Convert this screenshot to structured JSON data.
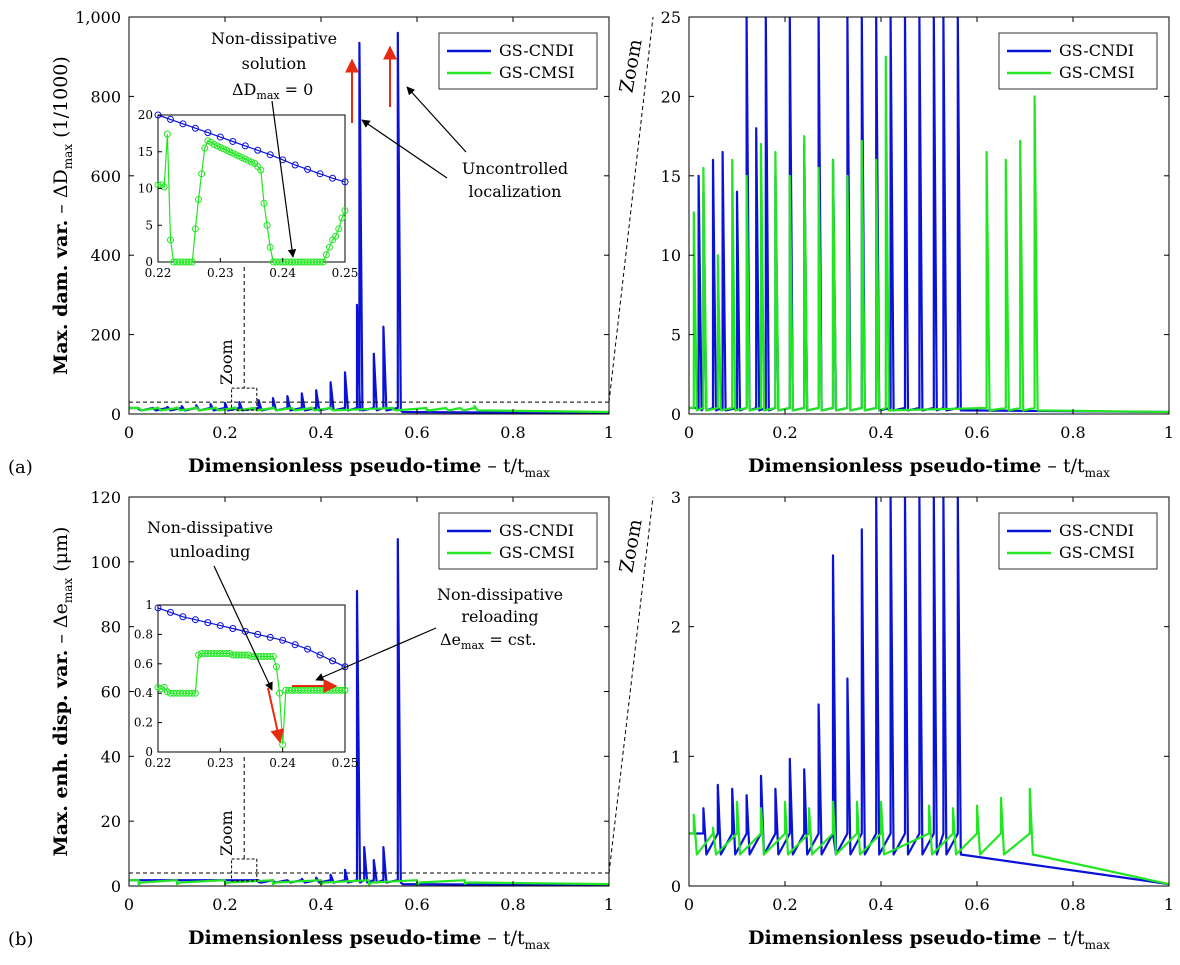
{
  "colors": {
    "cndi": "#0a12d6",
    "cmsi": "#22e622",
    "arrow": "#e52b10",
    "axis": "#000000"
  },
  "chart_data": [
    {
      "id": "a_main",
      "type": "line",
      "panel_label": "(a)",
      "xlabel_bold": "Dimensionless pseudo-time",
      "xlabel_rest": " – t/t",
      "xlabel_sub": "max",
      "ylabel_bold": "Max. dam. var.",
      "ylabel_rest": " – ΔD",
      "ylabel_sub": "max",
      "ylabel_tail": " (1/1000)",
      "xlim": [
        0,
        1
      ],
      "ylim": [
        0,
        1000
      ],
      "xticks": [
        "0",
        "0.2",
        "0.4",
        "0.6",
        "0.8",
        "1"
      ],
      "yticks": [
        "0",
        "200",
        "400",
        "600",
        "800",
        "1,000"
      ],
      "legend": [
        "GS-CNDI",
        "GS-CMSI"
      ],
      "legend_position": "top-right",
      "zoom_label": "Zoom",
      "annotations": [
        "Non-dissipative",
        "solution",
        "ΔD",
        "max",
        " = 0",
        "Uncontrolled",
        "localization"
      ],
      "series": [
        {
          "name": "GS-CNDI",
          "peaks": [
            [
              0.02,
              12
            ],
            [
              0.05,
              14
            ],
            [
              0.08,
              18
            ],
            [
              0.11,
              20
            ],
            [
              0.14,
              22
            ],
            [
              0.17,
              25
            ],
            [
              0.2,
              28
            ],
            [
              0.23,
              30
            ],
            [
              0.27,
              35
            ],
            [
              0.3,
              40
            ],
            [
              0.33,
              45
            ],
            [
              0.36,
              52
            ],
            [
              0.39,
              60
            ],
            [
              0.42,
              80
            ],
            [
              0.45,
              105
            ],
            [
              0.475,
              275
            ],
            [
              0.48,
              935
            ],
            [
              0.51,
              152
            ],
            [
              0.53,
              220
            ],
            [
              0.56,
              960
            ]
          ],
          "end_x": 0.57
        },
        {
          "name": "GS-CMSI",
          "peaks": [
            [
              0.02,
              15
            ],
            [
              0.06,
              16
            ],
            [
              0.1,
              17
            ],
            [
              0.14,
              17
            ],
            [
              0.18,
              16
            ],
            [
              0.22,
              17
            ],
            [
              0.26,
              15
            ],
            [
              0.3,
              17
            ],
            [
              0.34,
              14
            ],
            [
              0.38,
              16
            ],
            [
              0.42,
              13
            ],
            [
              0.55,
              12
            ],
            [
              0.62,
              10
            ],
            [
              0.66,
              14
            ],
            [
              0.69,
              15
            ],
            [
              0.72,
              20
            ]
          ],
          "end_x": 1
        }
      ]
    },
    {
      "id": "a_zoom",
      "type": "line",
      "xlabel_bold": "Dimensionless pseudo-time",
      "xlabel_rest": " – t/t",
      "xlabel_sub": "max",
      "ylabel": "Zoom",
      "xlim": [
        0,
        1
      ],
      "ylim": [
        0,
        25
      ],
      "xticks": [
        "0",
        "0.2",
        "0.4",
        "0.6",
        "0.8",
        "1"
      ],
      "yticks": [
        "0",
        "5",
        "10",
        "15",
        "20",
        "25"
      ],
      "legend": [
        "GS-CNDI",
        "GS-CMSI"
      ],
      "legend_position": "top-right",
      "series": [
        {
          "name": "GS-CNDI",
          "peaks": [
            [
              0.02,
              15
            ],
            [
              0.03,
              14
            ],
            [
              0.05,
              16
            ],
            [
              0.07,
              16.5
            ],
            [
              0.1,
              14
            ],
            [
              0.12,
              25
            ],
            [
              0.14,
              18
            ],
            [
              0.16,
              25
            ],
            [
              0.18,
              15
            ],
            [
              0.21,
              25
            ],
            [
              0.24,
              17
            ],
            [
              0.27,
              25
            ],
            [
              0.3,
              16
            ],
            [
              0.33,
              25
            ],
            [
              0.36,
              25
            ],
            [
              0.39,
              25
            ],
            [
              0.42,
              25
            ],
            [
              0.45,
              25
            ],
            [
              0.48,
              25
            ],
            [
              0.51,
              25
            ],
            [
              0.53,
              25
            ],
            [
              0.56,
              25
            ]
          ],
          "end_x": 1
        },
        {
          "name": "GS-CMSI",
          "peaks": [
            [
              0.01,
              12.7
            ],
            [
              0.03,
              15.5
            ],
            [
              0.06,
              10
            ],
            [
              0.09,
              16
            ],
            [
              0.12,
              15
            ],
            [
              0.15,
              17
            ],
            [
              0.18,
              16.5
            ],
            [
              0.21,
              15
            ],
            [
              0.24,
              17.5
            ],
            [
              0.27,
              15.5
            ],
            [
              0.3,
              16
            ],
            [
              0.33,
              15
            ],
            [
              0.36,
              17.2
            ],
            [
              0.39,
              16
            ],
            [
              0.41,
              22.5
            ],
            [
              0.62,
              16.5
            ],
            [
              0.66,
              16
            ],
            [
              0.69,
              17.2
            ],
            [
              0.72,
              20
            ]
          ],
          "end_x": 1
        }
      ]
    },
    {
      "id": "b_main",
      "type": "line",
      "panel_label": "(b)",
      "xlabel_bold": "Dimensionless pseudo-time",
      "xlabel_rest": " – t/t",
      "xlabel_sub": "max",
      "ylabel_bold": "Max. enh. disp. var.",
      "ylabel_rest": " – Δe",
      "ylabel_sub": "max",
      "ylabel_tail": " (μm)",
      "xlim": [
        0,
        1
      ],
      "ylim": [
        0,
        120
      ],
      "xticks": [
        "0",
        "0.2",
        "0.4",
        "0.6",
        "0.8",
        "1"
      ],
      "yticks": [
        "0",
        "20",
        "40",
        "60",
        "80",
        "100",
        "120"
      ],
      "legend": [
        "GS-CNDI",
        "GS-CMSI"
      ],
      "legend_position": "top-right",
      "zoom_label": "Zoom",
      "annotations": [
        "Non-dissipative",
        "unloading",
        "Non-dissipative",
        "reloading",
        "Δe",
        "max",
        " = cst."
      ],
      "series": [
        {
          "name": "GS-CNDI",
          "peaks": [
            [
              0.27,
              1.2
            ],
            [
              0.3,
              1.5
            ],
            [
              0.33,
              1.8
            ],
            [
              0.36,
              2.2
            ],
            [
              0.39,
              2.6
            ],
            [
              0.42,
              3.5
            ],
            [
              0.45,
              5
            ],
            [
              0.475,
              91
            ],
            [
              0.49,
              12
            ],
            [
              0.51,
              8
            ],
            [
              0.53,
              12
            ],
            [
              0.56,
              107
            ]
          ],
          "end_x": 0.57
        },
        {
          "name": "GS-CMSI",
          "peaks": [
            [
              0.02,
              0.6
            ],
            [
              0.1,
              0.6
            ],
            [
              0.2,
              0.6
            ],
            [
              0.3,
              0.6
            ],
            [
              0.4,
              0.6
            ],
            [
              0.5,
              0.5
            ],
            [
              0.6,
              0.5
            ],
            [
              0.7,
              0.7
            ]
          ],
          "end_x": 1
        }
      ]
    },
    {
      "id": "b_zoom",
      "type": "line",
      "xlabel_bold": "Dimensionless pseudo-time",
      "xlabel_rest": " – t/t",
      "xlabel_sub": "max",
      "ylabel": "Zoom",
      "xlim": [
        0,
        1
      ],
      "ylim": [
        0,
        3
      ],
      "xticks": [
        "0",
        "0.2",
        "0.4",
        "0.6",
        "0.8",
        "1"
      ],
      "yticks": [
        "0",
        "1",
        "2",
        "3"
      ],
      "legend": [
        "GS-CNDI",
        "GS-CMSI"
      ],
      "legend_position": "top-right",
      "series": [
        {
          "name": "GS-CNDI",
          "peaks": [
            [
              0.03,
              0.6
            ],
            [
              0.06,
              0.78
            ],
            [
              0.09,
              0.75
            ],
            [
              0.12,
              0.7
            ],
            [
              0.15,
              0.85
            ],
            [
              0.18,
              0.75
            ],
            [
              0.21,
              0.98
            ],
            [
              0.24,
              0.9
            ],
            [
              0.27,
              1.4
            ],
            [
              0.3,
              1.3
            ],
            [
              0.3,
              2.55
            ],
            [
              0.33,
              1.6
            ],
            [
              0.36,
              2.75
            ],
            [
              0.39,
              3
            ],
            [
              0.42,
              3
            ],
            [
              0.45,
              3
            ],
            [
              0.48,
              3
            ],
            [
              0.51,
              3
            ],
            [
              0.53,
              3
            ],
            [
              0.56,
              3
            ]
          ],
          "end_x": 1
        },
        {
          "name": "GS-CMSI",
          "peaks": [
            [
              0.01,
              0.55
            ],
            [
              0.05,
              0.45
            ],
            [
              0.1,
              0.65
            ],
            [
              0.15,
              0.6
            ],
            [
              0.2,
              0.65
            ],
            [
              0.25,
              0.6
            ],
            [
              0.3,
              0.65
            ],
            [
              0.35,
              0.65
            ],
            [
              0.4,
              0.65
            ],
            [
              0.5,
              0.62
            ],
            [
              0.55,
              0.6
            ],
            [
              0.6,
              0.62
            ],
            [
              0.65,
              0.68
            ],
            [
              0.71,
              0.75
            ]
          ],
          "end_x": 1
        }
      ]
    }
  ],
  "insets": [
    {
      "id": "a_inset",
      "type": "line",
      "xlim": [
        0.22,
        0.25
      ],
      "ylim": [
        0,
        20
      ],
      "xticks": [
        "0.22",
        "0.23",
        "0.24",
        "0.25"
      ],
      "yticks": [
        "0",
        "5",
        "10",
        "15",
        "20"
      ],
      "series": [
        {
          "name": "GS-CNDI",
          "x": [
            0.22,
            0.222,
            0.224,
            0.226,
            0.228,
            0.23,
            0.232,
            0.234,
            0.236,
            0.238,
            0.24,
            0.242,
            0.244,
            0.246,
            0.248,
            0.25
          ],
          "y": [
            20,
            19.4,
            18.8,
            18.2,
            17.6,
            17.0,
            16.4,
            15.8,
            15.2,
            14.6,
            13.9,
            13.2,
            12.6,
            12.0,
            11.4,
            10.9
          ]
        },
        {
          "name": "GS-CMSI",
          "x": [
            0.22,
            0.2205,
            0.221,
            0.2215,
            0.222,
            0.2225,
            0.223,
            0.2235,
            0.224,
            0.2245,
            0.225,
            0.2255,
            0.226,
            0.2265,
            0.227,
            0.2275,
            0.228,
            0.2285,
            0.229,
            0.2295,
            0.23,
            0.2305,
            0.231,
            0.2315,
            0.232,
            0.2325,
            0.233,
            0.2335,
            0.234,
            0.2345,
            0.235,
            0.2355,
            0.236,
            0.2365,
            0.237,
            0.2375,
            0.238,
            0.2385,
            0.239,
            0.2395,
            0.24,
            0.2405,
            0.241,
            0.2415,
            0.242,
            0.2425,
            0.243,
            0.2435,
            0.244,
            0.2445,
            0.245,
            0.2455,
            0.246,
            0.2465,
            0.247,
            0.2475,
            0.248,
            0.2485,
            0.249,
            0.2495,
            0.25
          ],
          "y": [
            10.5,
            10.5,
            10.2,
            17.4,
            3,
            0,
            0,
            0,
            0,
            0,
            0,
            0,
            4.5,
            8.5,
            12,
            15.5,
            16.5,
            16.3,
            16.0,
            15.8,
            15.6,
            15.4,
            15.2,
            15.0,
            14.8,
            14.6,
            14.4,
            14.2,
            14.0,
            13.8,
            13.6,
            13.4,
            13.0,
            12.5,
            8,
            5,
            2,
            0,
            0,
            0,
            0,
            0,
            0,
            0,
            0,
            0,
            0,
            0,
            0,
            0,
            0,
            0,
            0,
            0,
            1,
            2,
            3,
            3.5,
            4.5,
            6,
            7
          ]
        }
      ]
    },
    {
      "id": "b_inset",
      "type": "line",
      "xlim": [
        0.22,
        0.25
      ],
      "ylim": [
        0,
        1
      ],
      "xticks": [
        "0.22",
        "0.23",
        "0.24",
        "0.25"
      ],
      "yticks": [
        "0",
        "0.2",
        "0.4",
        "0.6",
        "0.8",
        "1"
      ],
      "series": [
        {
          "name": "GS-CNDI",
          "x": [
            0.22,
            0.222,
            0.224,
            0.226,
            0.228,
            0.23,
            0.232,
            0.234,
            0.236,
            0.238,
            0.24,
            0.242,
            0.244,
            0.246,
            0.248,
            0.25
          ],
          "y": [
            0.98,
            0.95,
            0.92,
            0.9,
            0.88,
            0.86,
            0.84,
            0.82,
            0.8,
            0.78,
            0.76,
            0.73,
            0.7,
            0.66,
            0.62,
            0.58
          ]
        },
        {
          "name": "GS-CMSI",
          "x": [
            0.22,
            0.2205,
            0.221,
            0.2215,
            0.222,
            0.2225,
            0.223,
            0.2235,
            0.224,
            0.2245,
            0.225,
            0.2255,
            0.226,
            0.2265,
            0.227,
            0.2275,
            0.228,
            0.2285,
            0.229,
            0.2295,
            0.23,
            0.2305,
            0.231,
            0.2315,
            0.232,
            0.2325,
            0.233,
            0.2335,
            0.234,
            0.2345,
            0.235,
            0.2355,
            0.236,
            0.2365,
            0.237,
            0.2375,
            0.238,
            0.2385,
            0.239,
            0.2395,
            0.24,
            0.2405,
            0.241,
            0.2415,
            0.242,
            0.2425,
            0.243,
            0.2435,
            0.244,
            0.2445,
            0.245,
            0.2455,
            0.246,
            0.2465,
            0.247,
            0.2475,
            0.248,
            0.2485,
            0.249,
            0.2495,
            0.25
          ],
          "y": [
            0.44,
            0.43,
            0.44,
            0.41,
            0.4,
            0.4,
            0.4,
            0.4,
            0.4,
            0.4,
            0.4,
            0.4,
            0.4,
            0.66,
            0.67,
            0.67,
            0.67,
            0.67,
            0.67,
            0.67,
            0.67,
            0.67,
            0.67,
            0.67,
            0.66,
            0.66,
            0.66,
            0.66,
            0.66,
            0.66,
            0.65,
            0.65,
            0.65,
            0.65,
            0.65,
            0.65,
            0.65,
            0.65,
            0.58,
            0.4,
            0.05,
            0.42,
            0.42,
            0.42,
            0.42,
            0.42,
            0.42,
            0.42,
            0.42,
            0.42,
            0.42,
            0.42,
            0.42,
            0.42,
            0.42,
            0.42,
            0.42,
            0.42,
            0.42,
            0.42,
            0.42
          ]
        }
      ]
    }
  ]
}
